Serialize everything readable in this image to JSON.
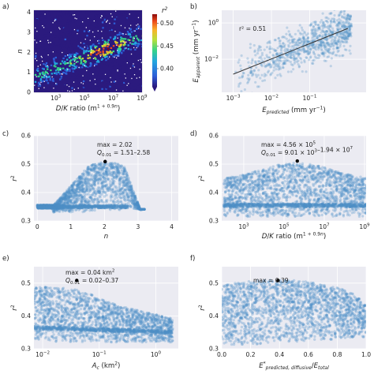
{
  "panel_letters": [
    "a)",
    "b)",
    "c)",
    "d)",
    "e)",
    "f)"
  ],
  "chart_data": [
    {
      "id": "a",
      "type": "heatmap",
      "xlabel_html": "D/K ratio (m<tspan font-size='6' dy='-3'>1 + 0.9n</tspan><tspan dy='3'>)</tspan>",
      "xlabel_text": "D/K ratio (m1 + 0.9n)",
      "ylabel": "n",
      "xscale": "log",
      "xlim": [
        30,
        1000000000.0
      ],
      "ylim": [
        0,
        4.1
      ],
      "xticks": [
        1000.0,
        100000.0,
        10000000.0,
        1000000000.0
      ],
      "xtick_labels": [
        "10^3",
        "10^5",
        "10^7",
        "10^9"
      ],
      "yticks": [
        0,
        1,
        2,
        3,
        4
      ],
      "ytick_labels": [
        "0",
        "1",
        "2",
        "3",
        "4"
      ],
      "colorbar": {
        "label": "r²",
        "range": [
          0.36,
          0.52
        ],
        "ticks": [
          0.4,
          0.45,
          0.5
        ],
        "tick_labels": [
          "0.40",
          "0.45",
          "0.50"
        ]
      },
      "ridge": {
        "log10_x": [
          2.5,
          9
        ],
        "n": [
          1.1,
          2.9
        ]
      }
    },
    {
      "id": "b",
      "type": "scatter",
      "xlabel": "E_predicted (mm yr−1)",
      "ylabel": "E_apparent (mm yr−1)",
      "xscale": "log",
      "yscale": "log",
      "xlim": [
        0.0005,
        3
      ],
      "ylim": [
        0.00015,
        5
      ],
      "xticks": [
        0.001,
        0.01,
        0.1
      ],
      "xtick_labels": [
        "10^-3",
        "10^-2",
        "10^-1"
      ],
      "yticks": [
        0.01,
        1
      ],
      "ytick_labels": [
        "10^-2",
        "10^0"
      ],
      "annotation": "r² = 0.51",
      "fit_line": {
        "x": [
          0.001,
          1.0
        ],
        "y": [
          0.0015,
          0.5
        ]
      }
    },
    {
      "id": "c",
      "type": "scatter",
      "xlabel": "n",
      "ylabel": "r²",
      "xlim": [
        -0.1,
        4.2
      ],
      "ylim": [
        0.3,
        0.6
      ],
      "xticks": [
        0,
        1,
        2,
        3,
        4
      ],
      "xtick_labels": [
        "0",
        "1",
        "2",
        "3",
        "4"
      ],
      "yticks": [
        0.3,
        0.4,
        0.5,
        0.6
      ],
      "ytick_labels": [
        "0.3",
        "0.4",
        "0.5",
        "0.6"
      ],
      "max_point": {
        "x": 2.02,
        "y": 0.509
      },
      "annotation_line1": "max = 2.02",
      "annotation_q_label": "Q",
      "annotation_q_sub": "0.01",
      "annotation_q_value": " = 1.51–2.58"
    },
    {
      "id": "d",
      "type": "scatter",
      "xlabel_html": "D/K ratio (m<tspan font-size='6' dy='-3'>1 + 0.9n</tspan><tspan dy='3'>)</tspan>",
      "xlabel_text": "D/K ratio (m1 + 0.9n)",
      "ylabel": "r²",
      "xscale": "log",
      "xlim": [
        80,
        1200000000.0
      ],
      "ylim": [
        0.3,
        0.6
      ],
      "xticks": [
        1000.0,
        100000.0,
        10000000.0,
        1000000000.0
      ],
      "xtick_labels": [
        "10^3",
        "10^5",
        "10^7",
        "10^9"
      ],
      "yticks": [
        0.3,
        0.4,
        0.5,
        0.6
      ],
      "ytick_labels": [
        "0.3",
        "0.4",
        "0.5",
        "0.6"
      ],
      "max_point": {
        "x": 456000,
        "y": 0.511
      },
      "annotation_line1": "max = 4.56 × 10^5",
      "annotation_q_label": "Q",
      "annotation_q_sub": "0.01",
      "annotation_q_value": " = 9.01 × 10^3–1.94 × 10^7"
    },
    {
      "id": "e",
      "type": "scatter",
      "xlabel": "A_c (km²)",
      "ylabel": "r²",
      "xscale": "log",
      "xlim": [
        0.007,
        2.5
      ],
      "ylim": [
        0.3,
        0.55
      ],
      "xticks": [
        0.01,
        0.1,
        1
      ],
      "xtick_labels": [
        "10^-2",
        "10^-1",
        "10^0"
      ],
      "yticks": [
        0.3,
        0.4,
        0.5
      ],
      "ytick_labels": [
        "0.3",
        "0.4",
        "0.5"
      ],
      "max_point": {
        "x": 0.04,
        "y": 0.508
      },
      "annotation_line1": "max = 0.04 km²",
      "annotation_q_label": "Q",
      "annotation_q_sub": "0.01",
      "annotation_q_value": " = 0.02–0.37"
    },
    {
      "id": "f",
      "type": "scatter",
      "xlabel": "E*_predicted, diffusive / E_total",
      "ylabel": "r²",
      "xlim": [
        0.0,
        1.0
      ],
      "ylim": [
        0.3,
        0.55
      ],
      "xticks": [
        0.0,
        0.2,
        0.4,
        0.6,
        0.8,
        1.0
      ],
      "xtick_labels": [
        "0.0",
        "0.2",
        "0.4",
        "0.6",
        "0.8",
        "1.0"
      ],
      "yticks": [
        0.3,
        0.4,
        0.5
      ],
      "ytick_labels": [
        "0.3",
        "0.4",
        "0.5"
      ],
      "max_point": {
        "x": 0.39,
        "y": 0.508
      },
      "annotation_line1": "max = 0.39"
    }
  ],
  "colors": {
    "scatter": "#4d8ec6",
    "axes_bg": "#ebebf2",
    "grid": "#ffffff",
    "fit_line": "#333333",
    "max_marker": "#000000"
  }
}
